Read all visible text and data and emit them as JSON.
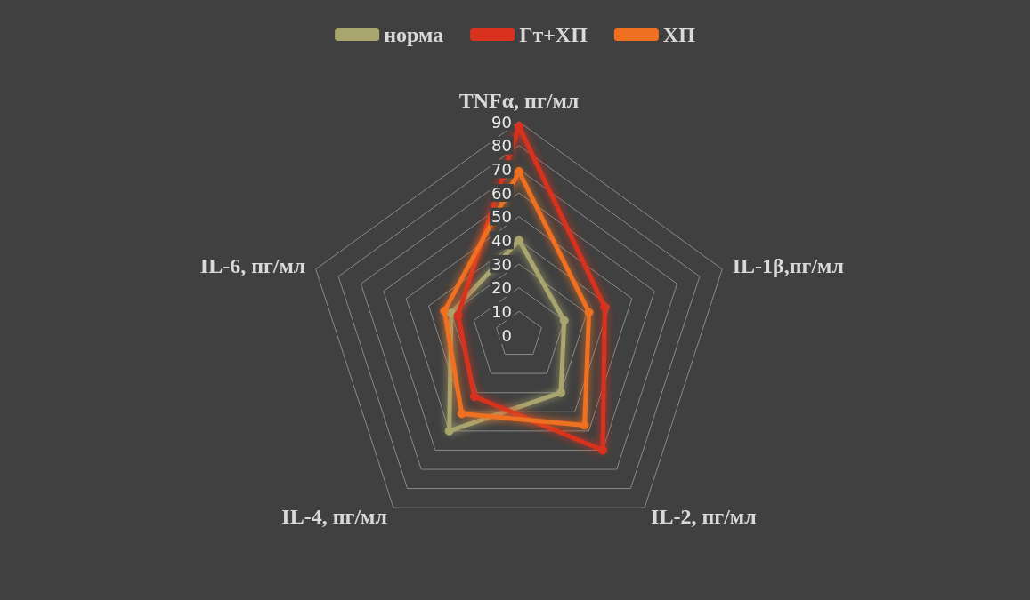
{
  "chart_data": {
    "type": "radar",
    "categories": [
      "TNFα, пг/мл",
      "IL-1β,пг/мл",
      "IL-2, пг/мл",
      "IL-4, пг/мл",
      "IL-6, пг/мл"
    ],
    "series": [
      {
        "name": "норма",
        "color": "#a8a56e",
        "values": [
          40,
          20,
          30,
          50,
          30
        ]
      },
      {
        "name": "Гт+ХП",
        "color": "#d8321f",
        "values": [
          88,
          38,
          60,
          32,
          27
        ]
      },
      {
        "name": "ХП",
        "color": "#f07022",
        "values": [
          69,
          31,
          47,
          41,
          33
        ]
      }
    ],
    "ylim": [
      0,
      90
    ],
    "yticks": [
      0,
      10,
      20,
      30,
      40,
      50,
      60,
      70,
      80,
      90
    ],
    "grid": true,
    "legend": "top",
    "marker": "circle",
    "line_style": "solid"
  }
}
